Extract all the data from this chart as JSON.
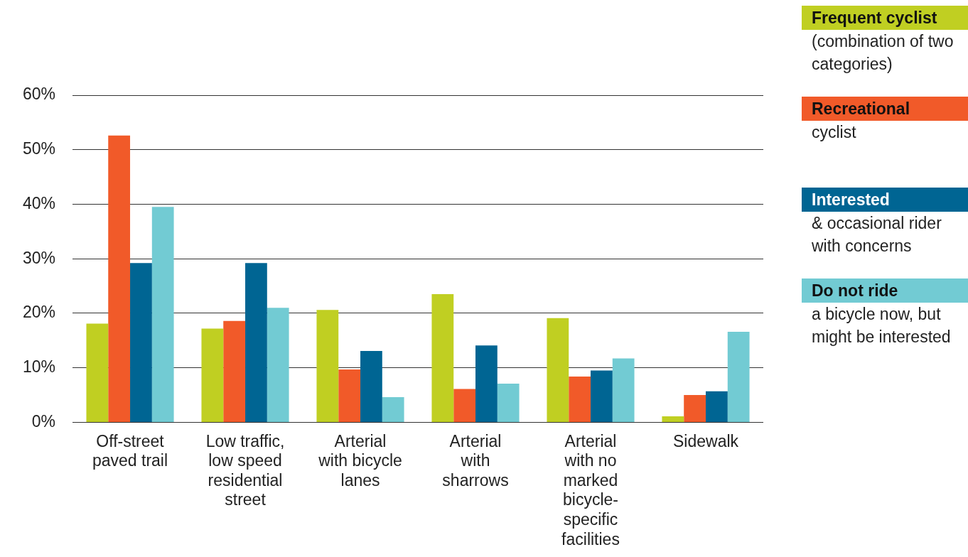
{
  "chart_data": {
    "type": "bar",
    "categories": [
      "Off-street paved trail",
      "Low traffic, low speed residential street",
      "Arterial with bicycle lanes",
      "Arterial with sharrows",
      "Arterial with no marked bicycle-specific facilities",
      "Sidewalk"
    ],
    "series": [
      {
        "name": "Frequent cyclist",
        "color": "#c0cf22",
        "values": [
          18.1,
          17.2,
          20.6,
          23.5,
          19.1,
          1.1
        ]
      },
      {
        "name": "Recreational",
        "color": "#f15a29",
        "values": [
          52.6,
          18.6,
          9.7,
          6.1,
          8.4,
          5.0
        ]
      },
      {
        "name": "Interested",
        "color": "#006593",
        "values": [
          29.2,
          29.2,
          13.1,
          14.1,
          9.5,
          5.7
        ]
      },
      {
        "name": "Do not ride",
        "color": "#72cbd3",
        "values": [
          39.5,
          21.0,
          4.6,
          7.1,
          11.7,
          16.6
        ]
      }
    ],
    "annotations": [
      "(combination of two categories)",
      "cyclist",
      "& occasional rider with concerns",
      "a bicycle now, but might be interested"
    ],
    "ylim": [
      0,
      60
    ],
    "yticks": [
      {
        "value": 0,
        "label": "0%"
      },
      {
        "value": 10,
        "label": "10%"
      },
      {
        "value": 20,
        "label": "20%"
      },
      {
        "value": 30,
        "label": "30%"
      },
      {
        "value": 40,
        "label": "40%"
      },
      {
        "value": 50,
        "label": "50%"
      },
      {
        "value": 60,
        "label": "60%"
      }
    ],
    "grid": "y",
    "legend": "right"
  }
}
